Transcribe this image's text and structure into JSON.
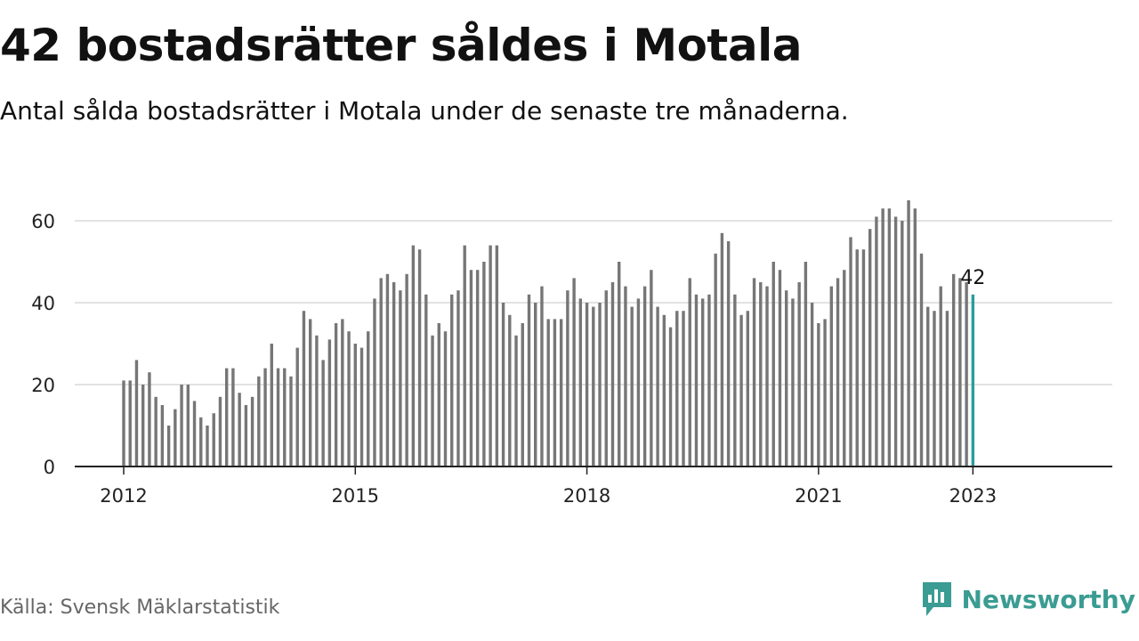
{
  "header": {
    "title": "42 bostadsrätter såldes i Motala",
    "subtitle": "Antal sålda bostadsrätter i Motala under de senaste tre månaderna."
  },
  "footer": {
    "source": "Källa: Svensk Mäklarstatistik",
    "brand": "Newsworthy"
  },
  "colors": {
    "bar": "#767676",
    "highlight": "#2a9d98",
    "grid": "#d9d9d9",
    "axis": "#222222",
    "brand": "#3a9c92"
  },
  "chart_data": {
    "type": "bar",
    "title": "42 bostadsrätter såldes i Motala",
    "subtitle": "Antal sålda bostadsrätter i Motala under de senaste tre månaderna.",
    "xlabel": "",
    "ylabel": "",
    "x_start": "2012-01",
    "frequency": "monthly",
    "ylim": [
      0,
      70
    ],
    "yticks": [
      0,
      20,
      40,
      60
    ],
    "xticks": [
      "2012",
      "2015",
      "2018",
      "2021",
      "2023"
    ],
    "grid": true,
    "highlight_label": "42",
    "values": [
      21,
      21,
      26,
      20,
      23,
      17,
      15,
      10,
      14,
      20,
      20,
      16,
      12,
      10,
      13,
      17,
      24,
      24,
      18,
      15,
      17,
      22,
      24,
      30,
      24,
      24,
      22,
      29,
      38,
      36,
      32,
      26,
      31,
      35,
      36,
      33,
      30,
      29,
      33,
      41,
      46,
      47,
      45,
      43,
      47,
      54,
      53,
      42,
      32,
      35,
      33,
      42,
      43,
      54,
      48,
      48,
      50,
      54,
      54,
      40,
      37,
      32,
      35,
      42,
      40,
      44,
      36,
      36,
      36,
      43,
      46,
      41,
      40,
      39,
      40,
      43,
      45,
      50,
      44,
      39,
      41,
      44,
      48,
      39,
      37,
      34,
      38,
      38,
      46,
      42,
      41,
      42,
      52,
      57,
      55,
      42,
      37,
      38,
      46,
      45,
      44,
      50,
      48,
      43,
      41,
      45,
      50,
      40,
      35,
      36,
      44,
      46,
      48,
      56,
      53,
      53,
      58,
      61,
      63,
      63,
      61,
      60,
      65,
      63,
      52,
      39,
      38,
      44,
      38,
      47,
      46,
      45,
      42
    ]
  }
}
